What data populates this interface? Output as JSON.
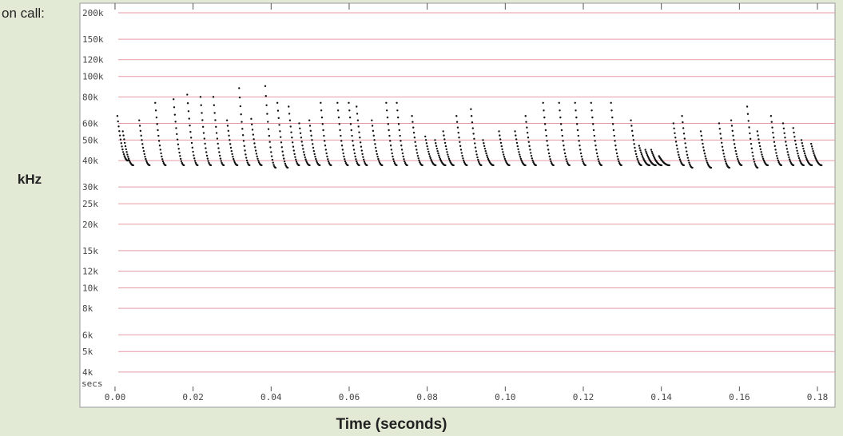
{
  "chart_data": {
    "type": "spectrogram",
    "caption": "on call:",
    "ylabel": "kHz",
    "xlabel": "Time (seconds)",
    "xunit_label": "secs",
    "log_y": true,
    "grid": true,
    "grid_color": "#e59aa3",
    "dot_color": "#111111",
    "xlim": [
      -0.009,
      0.1845
    ],
    "ylim": [
      3600,
      222000
    ],
    "yticks": [
      {
        "value": 200000,
        "label": "200k"
      },
      {
        "value": 150000,
        "label": "150k"
      },
      {
        "value": 120000,
        "label": "120k"
      },
      {
        "value": 100000,
        "label": "100k"
      },
      {
        "value": 80000,
        "label": "80k"
      },
      {
        "value": 60000,
        "label": "60k"
      },
      {
        "value": 50000,
        "label": "50k"
      },
      {
        "value": 40000,
        "label": "40k"
      },
      {
        "value": 30000,
        "label": "30k"
      },
      {
        "value": 25000,
        "label": "25k"
      },
      {
        "value": 20000,
        "label": "20k"
      },
      {
        "value": 15000,
        "label": "15k"
      },
      {
        "value": 12000,
        "label": "12k"
      },
      {
        "value": 10000,
        "label": "10k"
      },
      {
        "value": 8000,
        "label": "8k"
      },
      {
        "value": 6000,
        "label": "6k"
      },
      {
        "value": 5000,
        "label": "5k"
      },
      {
        "value": 4000,
        "label": "4k"
      }
    ],
    "xticks": [
      {
        "value": 0,
        "label": "0.00"
      },
      0.02,
      0.04,
      0.06,
      0.08,
      {
        "value": 0.1,
        "label": "0.10"
      },
      0.12,
      0.14,
      0.16,
      0.18
    ],
    "x": [
      0.0006,
      0.002,
      0.0062,
      0.0103,
      0.015,
      0.0185,
      0.0219,
      0.0252,
      0.0287,
      0.0318,
      0.0349,
      0.0385,
      0.0416,
      0.0445,
      0.0472,
      0.0498,
      0.0527,
      0.057,
      0.0599,
      0.0619,
      0.0658,
      0.0695,
      0.0722,
      0.0761,
      0.0795,
      0.082,
      0.0841,
      0.0875,
      0.0912,
      0.0943,
      0.0984,
      0.1025,
      0.1052,
      0.1097,
      0.1138,
      0.1179,
      0.122,
      0.1271,
      0.1322,
      0.1343,
      0.1359,
      0.1374,
      0.1394,
      0.1431,
      0.1453,
      0.1501,
      0.1548,
      0.1579,
      0.162,
      0.1646,
      0.1681,
      0.1712,
      0.1738,
      0.1759,
      0.1784
    ],
    "values": [
      65000,
      55000,
      62000,
      75000,
      78000,
      82000,
      80000,
      80000,
      62000,
      88000,
      63000,
      90000,
      75000,
      72000,
      60000,
      62000,
      75000,
      75000,
      75000,
      72000,
      62000,
      75000,
      75000,
      65000,
      52000,
      50000,
      55000,
      65000,
      70000,
      50000,
      55000,
      55000,
      65000,
      75000,
      75000,
      75000,
      75000,
      75000,
      62000,
      47000,
      45000,
      45000,
      42000,
      60000,
      65000,
      55000,
      60000,
      62000,
      72000,
      55000,
      65000,
      60000,
      57000,
      50000,
      48000
    ],
    "low_values": [
      40000,
      38000,
      38000,
      38000,
      38000,
      38000,
      38000,
      38000,
      38000,
      38000,
      38000,
      37000,
      37000,
      38000,
      38000,
      38000,
      38000,
      38000,
      38000,
      38000,
      38000,
      38000,
      38000,
      38000,
      38000,
      38000,
      38000,
      38000,
      38000,
      38000,
      38000,
      38000,
      38000,
      38000,
      38000,
      38000,
      38000,
      38000,
      38000,
      38000,
      38000,
      38000,
      38000,
      38000,
      37000,
      37000,
      37000,
      38000,
      37000,
      38000,
      38000,
      38000,
      38000,
      38000,
      38000
    ]
  }
}
